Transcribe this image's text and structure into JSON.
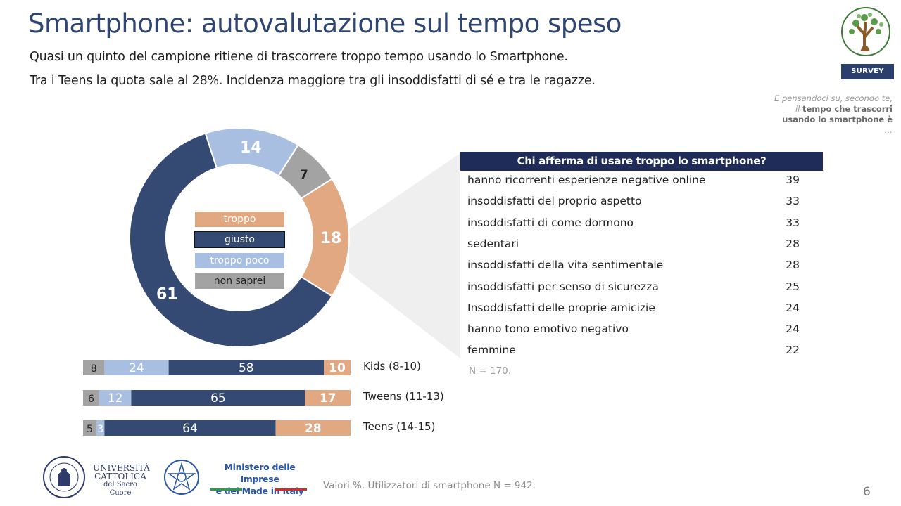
{
  "header": {
    "title": "Smartphone: autovalutazione sul tempo speso",
    "subtitle_1": "Quasi un quinto del campione ritiene di trascorrere troppo tempo usando lo Smartphone.",
    "subtitle_2": "Tra i Teens la quota sale al 28%. Incidenza maggiore tra gli insoddisfatti di sé e tra le ragazze."
  },
  "badge": {
    "label": "SURVEY"
  },
  "question": {
    "prefix": "E pensandoci su, secondo te, il ",
    "bold": "tempo che trascorri usando lo smartphone è",
    "suffix": " …"
  },
  "colors": {
    "troppo": "#e1a882",
    "giusto": "#354a73",
    "troppo_poco": "#a9bfe2",
    "non_saprei": "#a3a3a3",
    "header_blue": "#1f2c5a",
    "title_blue": "#2f4672"
  },
  "legend": [
    "troppo",
    "giusto",
    "troppo poco",
    "non saprei"
  ],
  "chart_data": [
    {
      "type": "pie",
      "categories": [
        "troppo",
        "giusto",
        "troppo poco",
        "non saprei"
      ],
      "values": [
        18,
        61,
        14,
        7
      ]
    },
    {
      "type": "bar",
      "stacked": true,
      "orientation": "horizontal",
      "categories": [
        "Kids (8-10)",
        "Tweens (11-13)",
        "Teens (14-15)"
      ],
      "series": [
        {
          "name": "non saprei",
          "values": [
            8,
            6,
            5
          ]
        },
        {
          "name": "troppo poco",
          "values": [
            24,
            12,
            3
          ]
        },
        {
          "name": "giusto",
          "values": [
            58,
            65,
            64
          ]
        },
        {
          "name": "troppo",
          "values": [
            10,
            17,
            28
          ]
        }
      ]
    },
    {
      "type": "table",
      "title": "Chi afferma di usare troppo lo smartphone?",
      "categories": [
        "hanno ricorrenti esperienze negative online",
        "insoddisfatti del proprio aspetto",
        "insoddisfatti di come dormono",
        "sedentari",
        "insoddisfatti della vita sentimentale",
        "insoddisfatti per senso di sicurezza",
        "Insoddisfatti delle proprie amicizie",
        "hanno tono emotivo negativo",
        "femmine"
      ],
      "values": [
        39,
        33,
        33,
        28,
        28,
        25,
        24,
        24,
        22
      ],
      "note": "N = 170."
    }
  ],
  "footnote": "Valori %. Utilizzatori di smartphone N = 942.",
  "page_number": "6",
  "logos": {
    "ucsc": [
      "UNIVERSITÀ",
      "CATTOLICA",
      "del Sacro Cuore"
    ],
    "mimit": [
      "Ministero delle Imprese",
      "e del Made in Italy"
    ]
  }
}
